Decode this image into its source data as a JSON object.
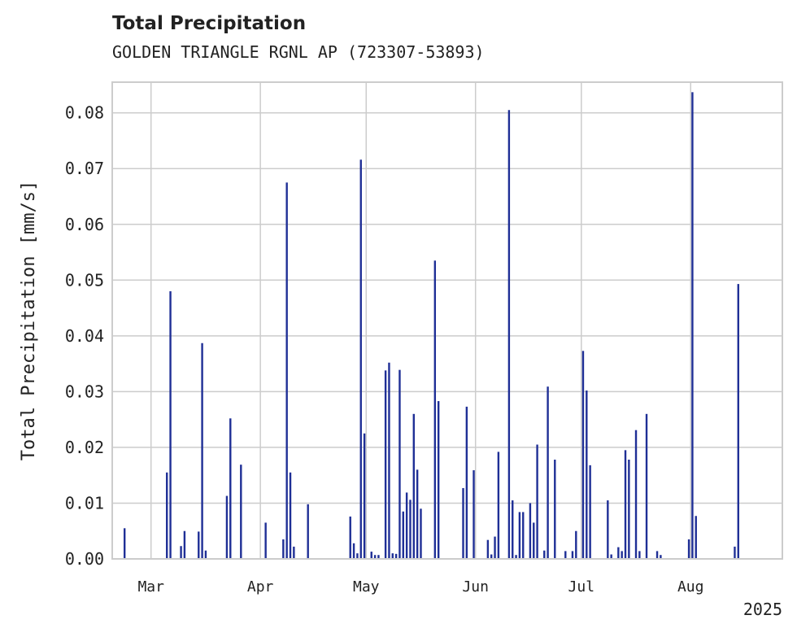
{
  "title": "Total Precipitation",
  "subtitle": "GOLDEN TRIANGLE RGNL AP (723307-53893)",
  "chart_data": {
    "type": "bar",
    "ylabel": "Total Precipitation [mm/s]",
    "xlabel": "",
    "ylim": [
      0,
      0.0855
    ],
    "xlim": [
      "2025-02-18",
      "2025-08-27"
    ],
    "grid": true,
    "color": "#1f2f96",
    "y_ticks": [
      "0.00",
      "0.01",
      "0.02",
      "0.03",
      "0.04",
      "0.05",
      "0.06",
      "0.07",
      "0.08"
    ],
    "x_ticks": [
      {
        "date": "2025-03-01",
        "label": "Mar"
      },
      {
        "date": "2025-04-01",
        "label": "Apr"
      },
      {
        "date": "2025-05-01",
        "label": "May"
      },
      {
        "date": "2025-06-01",
        "label": "Jun"
      },
      {
        "date": "2025-07-01",
        "label": "Jul"
      },
      {
        "date": "2025-08-01",
        "label": "Aug"
      }
    ],
    "x_offset_label": "2025",
    "series": [
      {
        "x": [
          "2025-02-21",
          "2025-03-05",
          "2025-03-06",
          "2025-03-09",
          "2025-03-10",
          "2025-03-14",
          "2025-03-15",
          "2025-03-16",
          "2025-03-22",
          "2025-03-23",
          "2025-03-26",
          "2025-04-02",
          "2025-04-07",
          "2025-04-08",
          "2025-04-09",
          "2025-04-10",
          "2025-04-14",
          "2025-04-26",
          "2025-04-27",
          "2025-04-28",
          "2025-04-29",
          "2025-04-30",
          "2025-05-02",
          "2025-05-03",
          "2025-05-04",
          "2025-05-06",
          "2025-05-07",
          "2025-05-08",
          "2025-05-09",
          "2025-05-10",
          "2025-05-11",
          "2025-05-12",
          "2025-05-13",
          "2025-05-14",
          "2025-05-15",
          "2025-05-16",
          "2025-05-20",
          "2025-05-21",
          "2025-05-28",
          "2025-05-29",
          "2025-05-31",
          "2025-06-04",
          "2025-06-05",
          "2025-06-06",
          "2025-06-07",
          "2025-06-10",
          "2025-06-11",
          "2025-06-12",
          "2025-06-13",
          "2025-06-14",
          "2025-06-16",
          "2025-06-17",
          "2025-06-18",
          "2025-06-20",
          "2025-06-21",
          "2025-06-23",
          "2025-06-26",
          "2025-06-28",
          "2025-06-29",
          "2025-07-01",
          "2025-07-02",
          "2025-07-03",
          "2025-07-08",
          "2025-07-09",
          "2025-07-11",
          "2025-07-12",
          "2025-07-13",
          "2025-07-14",
          "2025-07-16",
          "2025-07-17",
          "2025-07-19",
          "2025-07-22",
          "2025-07-23",
          "2025-07-31",
          "2025-08-01",
          "2025-08-02",
          "2025-08-13",
          "2025-08-14"
        ],
        "values": [
          0.0055,
          0.0155,
          0.048,
          0.0023,
          0.005,
          0.0049,
          0.0387,
          0.0015,
          0.0113,
          0.0252,
          0.0169,
          0.0065,
          0.0035,
          0.0675,
          0.0155,
          0.0022,
          0.0098,
          0.0076,
          0.0028,
          0.001,
          0.0716,
          0.0225,
          0.0013,
          0.0007,
          0.0007,
          0.0338,
          0.0352,
          0.001,
          0.0009,
          0.0339,
          0.0085,
          0.0119,
          0.0106,
          0.026,
          0.016,
          0.009,
          0.0535,
          0.0283,
          0.0127,
          0.0273,
          0.0159,
          0.0034,
          0.0008,
          0.004,
          0.0192,
          0.0805,
          0.0105,
          0.0007,
          0.0084,
          0.0084,
          0.01,
          0.0065,
          0.0205,
          0.0015,
          0.0309,
          0.0178,
          0.0014,
          0.0014,
          0.005,
          0.0373,
          0.0302,
          0.0168,
          0.0105,
          0.0008,
          0.0021,
          0.0014,
          0.0195,
          0.0178,
          0.0231,
          0.0014,
          0.026,
          0.0014,
          0.0007,
          0.0035,
          0.0837,
          0.0077,
          0.0022,
          0.0493
        ]
      }
    ]
  }
}
